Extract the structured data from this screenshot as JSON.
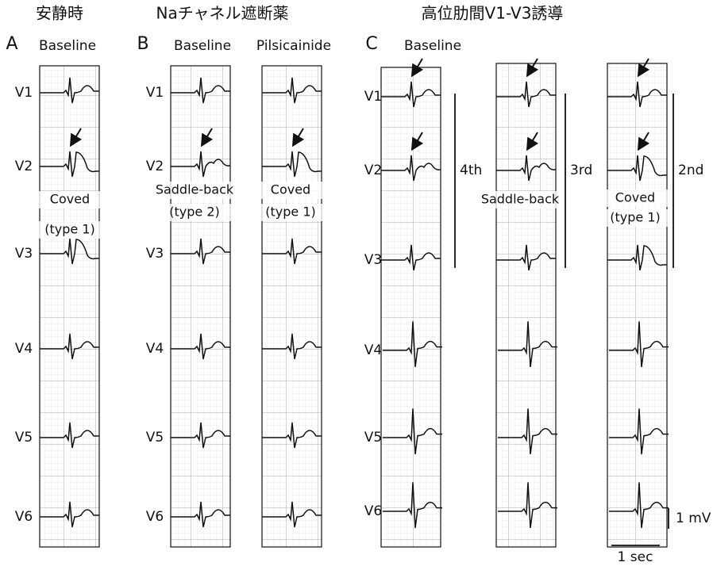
{
  "panels": [
    {
      "title": "安静時",
      "letter": "A",
      "leads": [
        "V1",
        "V2",
        "V3",
        "V4",
        "V5",
        "V6"
      ],
      "strips": [
        {
          "label": "Baseline",
          "annotation": [
            "Coved",
            "(type 1)"
          ]
        }
      ]
    },
    {
      "title": "Naチャネル遮断薬",
      "letter": "B",
      "leads": [
        "V1",
        "V2",
        "V3",
        "V4",
        "V5",
        "V6"
      ],
      "strips": [
        {
          "label": "Baseline",
          "annotation": [
            "Saddle-back",
            "(type 2)"
          ]
        },
        {
          "label": "Pilsicainide",
          "annotation": [
            "Coved",
            "(type 1)"
          ]
        }
      ]
    },
    {
      "title": "高位肋間V1-V3誘導",
      "letter": "C",
      "leads": [
        "V1",
        "V2",
        "V3",
        "V4",
        "V5",
        "V6"
      ],
      "strips": [
        {
          "label": "Baseline",
          "interspace": "4th"
        },
        {
          "interspace": "3rd",
          "annotation": [
            "Saddle-back"
          ]
        },
        {
          "interspace": "2nd",
          "annotation": [
            "Coved",
            "(type 1)"
          ]
        }
      ]
    }
  ],
  "scale": {
    "voltage": "1 mV",
    "time": "1 sec"
  }
}
